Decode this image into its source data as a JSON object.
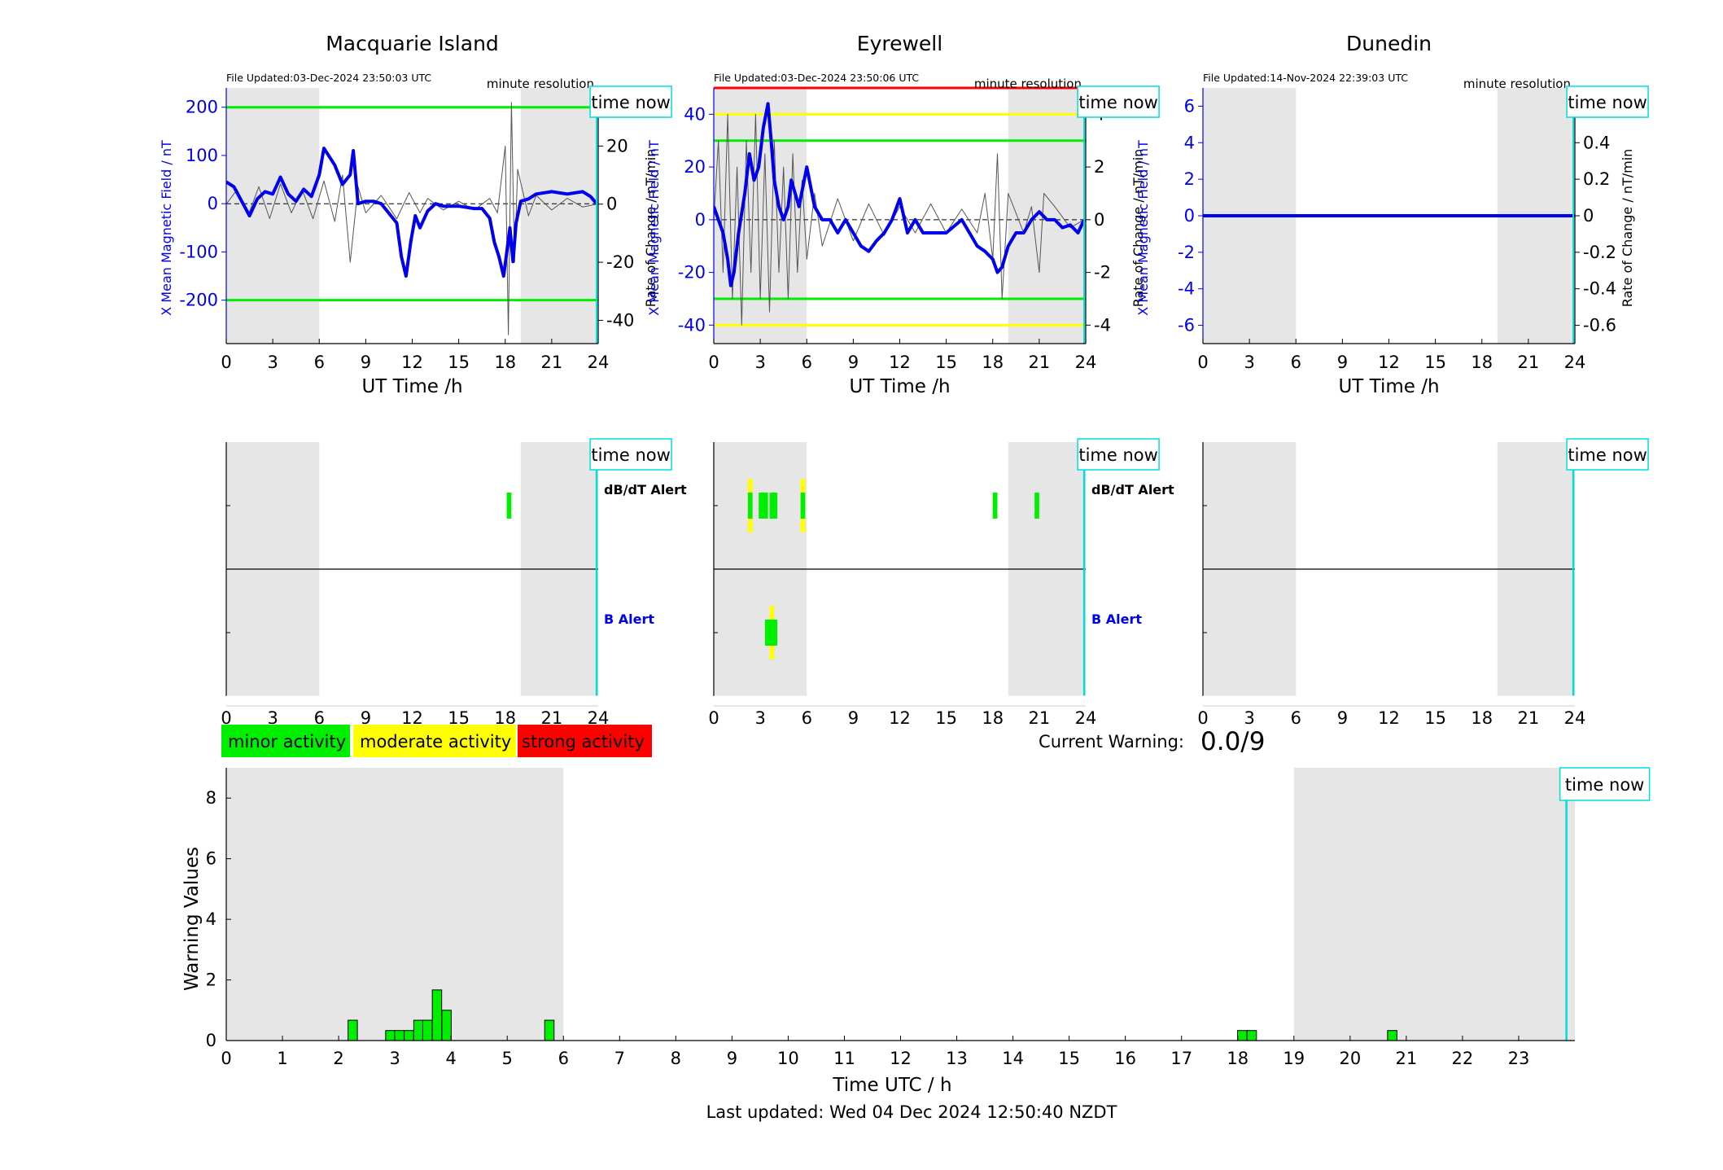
{
  "colors": {
    "band": "#e6e6e6",
    "x_trace": "#0000ee",
    "rate_trace": "#555555",
    "time_now": "#00dddd",
    "minor": "#00ee00",
    "moderate": "#ffff00",
    "strong": "#ff0000"
  },
  "common": {
    "time_now": "time now",
    "minute_resolution": "minute resolution",
    "ut_xlabel": "UT Time /h",
    "x_ylabel": "X Mean Magnetic Field / nT",
    "rate_ylabel": "Rate of Change / nT/min",
    "dbdt_alert": "dB/dT Alert",
    "b_alert": "B Alert"
  },
  "legend": [
    "minor activity",
    "moderate activity",
    "strong activity"
  ],
  "warning": {
    "label": "Current Warning:",
    "value": "0.0/9"
  },
  "footer": "Last updated: Wed 04 Dec 2024 12:50:40 NZDT",
  "chart_data": [
    {
      "type": "line",
      "title": "Macquarie Island",
      "file_updated": "File Updated:03-Dec-2024 23:50:03 UTC",
      "xlim": [
        0,
        24
      ],
      "xticks": [
        0,
        3,
        6,
        9,
        12,
        15,
        18,
        21,
        24
      ],
      "ylim": [
        -290,
        240
      ],
      "yticks": [
        -200,
        -100,
        0,
        100,
        200
      ],
      "y2lim": [
        -48,
        40
      ],
      "y2ticks": [
        -40,
        -20,
        0,
        20
      ],
      "shaded_hours": [
        [
          0,
          6
        ],
        [
          19,
          24
        ]
      ],
      "time_now_hour": 23.9,
      "threshold_lines": [
        {
          "y": 200,
          "color": "#00ee00"
        },
        {
          "y": -200,
          "color": "#00ee00"
        }
      ],
      "series": [
        {
          "axis": "left",
          "x": [
            0,
            0.5,
            1,
            1.5,
            2,
            2.5,
            3,
            3.5,
            4,
            4.5,
            5,
            5.5,
            6,
            6.3,
            6.6,
            7,
            7.5,
            8,
            8.2,
            8.5,
            9,
            9.5,
            10,
            10.5,
            11,
            11.3,
            11.6,
            11.9,
            12.2,
            12.5,
            13,
            13.5,
            14,
            15,
            16,
            16.5,
            17,
            17.3,
            17.6,
            17.9,
            18.1,
            18.3,
            18.5,
            18.7,
            19,
            19.5,
            20,
            21,
            22,
            23,
            23.5,
            23.9
          ],
          "y": [
            45,
            35,
            5,
            -25,
            10,
            25,
            20,
            55,
            20,
            5,
            30,
            15,
            60,
            115,
            100,
            80,
            40,
            60,
            110,
            0,
            5,
            5,
            0,
            -20,
            -40,
            -110,
            -150,
            -80,
            -25,
            -50,
            -15,
            0,
            -5,
            -5,
            -10,
            -10,
            -30,
            -80,
            -110,
            -150,
            -100,
            -50,
            -120,
            -40,
            5,
            10,
            20,
            25,
            20,
            25,
            15,
            0
          ]
        },
        {
          "axis": "right",
          "x": [
            0,
            0.7,
            1.4,
            2.1,
            2.8,
            3.5,
            4.2,
            4.9,
            5.6,
            6.3,
            7,
            7.5,
            8,
            8.5,
            9,
            10,
            11,
            11.8,
            12.5,
            13,
            14,
            15,
            16,
            17,
            17.5,
            18,
            18.2,
            18.4,
            18.6,
            18.8,
            19.5,
            20,
            21,
            22,
            23,
            23.9
          ],
          "y": [
            0,
            5,
            -4,
            6,
            -5,
            7,
            -3,
            5,
            -5,
            8,
            -6,
            10,
            -20,
            6,
            -3,
            3,
            -5,
            4,
            -3,
            2,
            -2,
            1,
            -2,
            2,
            -3,
            20,
            -45,
            35,
            -20,
            12,
            -4,
            3,
            -2,
            2,
            -1,
            0
          ]
        }
      ]
    },
    {
      "type": "line",
      "title": "Eyrewell",
      "file_updated": "File Updated:03-Dec-2024 23:50:06 UTC",
      "xlim": [
        0,
        24
      ],
      "xticks": [
        0,
        3,
        6,
        9,
        12,
        15,
        18,
        21,
        24
      ],
      "ylim": [
        -47,
        50
      ],
      "yticks": [
        -40,
        -20,
        0,
        20,
        40
      ],
      "y2lim": [
        -4.7,
        5
      ],
      "y2ticks": [
        -4,
        -2,
        0,
        2,
        4
      ],
      "shaded_hours": [
        [
          0,
          6
        ],
        [
          19,
          24
        ]
      ],
      "time_now_hour": 23.9,
      "threshold_lines": [
        {
          "y": 50,
          "color": "#ff0000"
        },
        {
          "y": 40,
          "color": "#ffff00"
        },
        {
          "y": 30,
          "color": "#00ee00"
        },
        {
          "y": -30,
          "color": "#00ee00"
        },
        {
          "y": -40,
          "color": "#ffff00"
        }
      ],
      "series": [
        {
          "axis": "left",
          "x": [
            0,
            0.3,
            0.6,
            0.9,
            1.1,
            1.3,
            1.6,
            2,
            2.3,
            2.6,
            2.9,
            3.2,
            3.5,
            3.7,
            3.9,
            4.2,
            4.5,
            4.8,
            5,
            5.5,
            6,
            6.5,
            7,
            7.5,
            8,
            8.5,
            9,
            9.5,
            10,
            10.5,
            11,
            11.5,
            12,
            12.5,
            13,
            13.5,
            14,
            15,
            16,
            16.5,
            17,
            17.5,
            18,
            18.3,
            18.6,
            19,
            19.5,
            20,
            20.5,
            21,
            21.5,
            22,
            22.5,
            23,
            23.5,
            23.9
          ],
          "y": [
            5,
            0,
            -5,
            -15,
            -25,
            -20,
            -5,
            10,
            25,
            15,
            20,
            35,
            44,
            30,
            15,
            5,
            0,
            5,
            15,
            5,
            20,
            5,
            0,
            0,
            -5,
            0,
            -5,
            -10,
            -12,
            -8,
            -5,
            0,
            8,
            -5,
            0,
            -5,
            -5,
            -5,
            0,
            -5,
            -10,
            -12,
            -15,
            -20,
            -18,
            -10,
            -5,
            -5,
            0,
            3,
            0,
            0,
            -3,
            -2,
            -5,
            0
          ]
        },
        {
          "axis": "right",
          "x": [
            0,
            0.3,
            0.6,
            0.9,
            1.2,
            1.5,
            1.8,
            2.1,
            2.4,
            2.7,
            3,
            3.3,
            3.6,
            3.9,
            4.2,
            4.5,
            4.8,
            5.1,
            5.4,
            5.7,
            6,
            6.5,
            7,
            8,
            9,
            10,
            11,
            12,
            13,
            14,
            15,
            16,
            17,
            17.5,
            18,
            18.3,
            18.6,
            19,
            20,
            20.5,
            21,
            21.3,
            22,
            23,
            23.9
          ],
          "y": [
            0,
            3,
            -2,
            4,
            -3,
            2,
            -4,
            3,
            -2,
            4,
            -3,
            2.5,
            -3.5,
            3,
            -2,
            2,
            -3,
            2.5,
            -2,
            1.5,
            -1.5,
            1,
            -1,
            0.8,
            -0.8,
            0.6,
            -0.6,
            0.5,
            -0.5,
            0.6,
            -0.5,
            0.4,
            -0.5,
            1,
            -1.5,
            2.5,
            -3,
            1,
            -0.5,
            0.5,
            -2,
            1,
            0.5,
            -0.3,
            0
          ]
        }
      ]
    },
    {
      "type": "line",
      "title": "Dunedin",
      "file_updated": "File Updated:14-Nov-2024 22:39:03 UTC",
      "xlim": [
        0,
        24
      ],
      "xticks": [
        0,
        3,
        6,
        9,
        12,
        15,
        18,
        21,
        24
      ],
      "ylim": [
        -7,
        7
      ],
      "yticks": [
        -6,
        -4,
        -2,
        0,
        2,
        4,
        6
      ],
      "y2lim": [
        -0.7,
        0.7
      ],
      "y2ticks": [
        -0.6,
        -0.4,
        -0.2,
        0,
        0.2,
        0.4,
        0.6
      ],
      "shaded_hours": [
        [
          0,
          6
        ],
        [
          19,
          24
        ]
      ],
      "time_now_hour": 23.9,
      "threshold_lines": [],
      "series": [
        {
          "axis": "left",
          "x": [
            0,
            24
          ],
          "y": [
            0,
            0
          ]
        }
      ]
    },
    {
      "type": "heatmap",
      "station": "Macquarie Island",
      "xlim": [
        0,
        24
      ],
      "xticks": [
        0,
        3,
        6,
        9,
        12,
        15,
        18,
        21,
        24
      ],
      "shaded_hours": [
        [
          0,
          6
        ],
        [
          19,
          24
        ]
      ],
      "time_now_hour": 23.9,
      "dbdt_events": [
        {
          "x0": 18.1,
          "x1": 18.4,
          "level": "minor"
        }
      ],
      "b_events": []
    },
    {
      "type": "heatmap",
      "station": "Eyrewell",
      "xlim": [
        0,
        24
      ],
      "xticks": [
        0,
        3,
        6,
        9,
        12,
        15,
        18,
        21,
        24
      ],
      "shaded_hours": [
        [
          0,
          6
        ],
        [
          19,
          24
        ]
      ],
      "time_now_hour": 23.9,
      "dbdt_events": [
        {
          "x0": 2.2,
          "x1": 2.5,
          "level": "moderate"
        },
        {
          "x0": 2.2,
          "x1": 2.5,
          "level": "minor"
        },
        {
          "x0": 2.9,
          "x1": 3.5,
          "level": "minor"
        },
        {
          "x0": 3.6,
          "x1": 4.1,
          "level": "minor"
        },
        {
          "x0": 5.6,
          "x1": 5.9,
          "level": "moderate"
        },
        {
          "x0": 5.6,
          "x1": 5.9,
          "level": "minor"
        },
        {
          "x0": 18,
          "x1": 18.3,
          "level": "minor"
        },
        {
          "x0": 20.7,
          "x1": 21,
          "level": "minor"
        }
      ],
      "b_events": [
        {
          "x0": 3.6,
          "x1": 3.9,
          "level": "moderate"
        },
        {
          "x0": 3.3,
          "x1": 4.1,
          "level": "minor"
        }
      ]
    },
    {
      "type": "heatmap",
      "station": "Dunedin",
      "xlim": [
        0,
        24
      ],
      "xticks": [
        0,
        3,
        6,
        9,
        12,
        15,
        18,
        21,
        24
      ],
      "shaded_hours": [
        [
          0,
          6
        ],
        [
          19,
          24
        ]
      ],
      "time_now_hour": 23.9,
      "dbdt_events": [],
      "b_events": []
    },
    {
      "type": "bar",
      "xlabel": "Time UTC / h",
      "ylabel": "Warning Values",
      "xlim": [
        0,
        24
      ],
      "xticks": [
        0,
        1,
        2,
        3,
        4,
        5,
        6,
        7,
        8,
        9,
        10,
        11,
        12,
        13,
        14,
        15,
        16,
        17,
        18,
        19,
        20,
        21,
        22,
        23
      ],
      "ylim": [
        0,
        9
      ],
      "yticks": [
        0,
        2,
        4,
        6,
        8
      ],
      "shaded_hours": [
        [
          0,
          6
        ],
        [
          19,
          24
        ]
      ],
      "time_now_hour": 23.85,
      "x": [
        2.25,
        2.92,
        3.08,
        3.25,
        3.42,
        3.58,
        3.75,
        3.92,
        5.75,
        18.08,
        18.25,
        20.75
      ],
      "values": [
        0.67,
        0.33,
        0.33,
        0.33,
        0.67,
        0.67,
        1.67,
        1.0,
        0.67,
        0.33,
        0.33,
        0.33
      ]
    }
  ]
}
